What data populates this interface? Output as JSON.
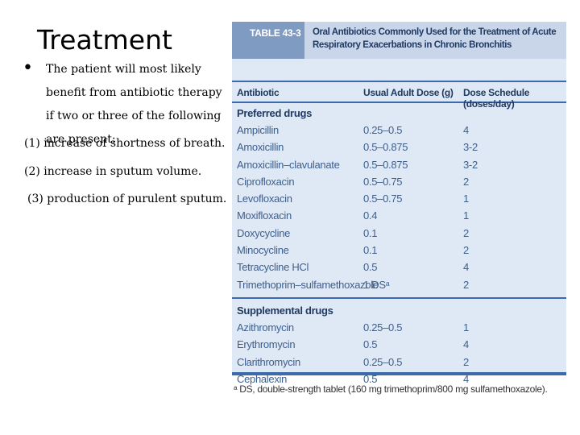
{
  "slide": {
    "title": "Treatment",
    "bullet_symbol": "•",
    "bullet_text": "The patient will most likely benefit from antibiotic therapy if two or three of the following are present:",
    "conditions": [
      "(1) increase of shortness of breath.",
      "(2) increase in sputum volume.",
      "(3) production of purulent sputum."
    ]
  },
  "table": {
    "label": "TABLE 43-3",
    "title": "Oral Antibiotics Commonly Used for the Treatment of Acute Respiratory Exacerbations in Chronic Bronchitis",
    "columns": [
      "Antibiotic",
      "Usual Adult Dose (g)",
      "Dose Schedule (doses/day)"
    ],
    "sections": [
      {
        "name": "Preferred drugs",
        "rows": [
          [
            "Ampicillin",
            "0.25–0.5",
            "4"
          ],
          [
            "Amoxicillin",
            "0.5–0.875",
            "3-2"
          ],
          [
            "Amoxicillin–clavulanate",
            "0.5–0.875",
            "3-2"
          ],
          [
            "Ciprofloxacin",
            "0.5–0.75",
            "2"
          ],
          [
            "Levofloxacin",
            "0.5–0.75",
            "1"
          ],
          [
            "Moxifloxacin",
            "0.4",
            "1"
          ],
          [
            "Doxycycline",
            "0.1",
            "2"
          ],
          [
            "Minocycline",
            "0.1",
            "2"
          ],
          [
            "Tetracycline HCl",
            "0.5",
            "4"
          ],
          [
            "Trimethoprim–sulfamethoxazole",
            "1 DSᵃ",
            "2"
          ]
        ]
      },
      {
        "name": "Supplemental drugs",
        "rows": [
          [
            "Azithromycin",
            "0.25–0.5",
            "1"
          ],
          [
            "Erythromycin",
            "0.5",
            "4"
          ],
          [
            "Clarithromycin",
            "0.25–0.5",
            "2"
          ],
          [
            "Cephalexin",
            "0.5",
            "4"
          ]
        ]
      }
    ],
    "footnote": "ᵃ DS, double-strength tablet (160 mg trimethoprim/800 mg sulfamethoxazole)."
  }
}
